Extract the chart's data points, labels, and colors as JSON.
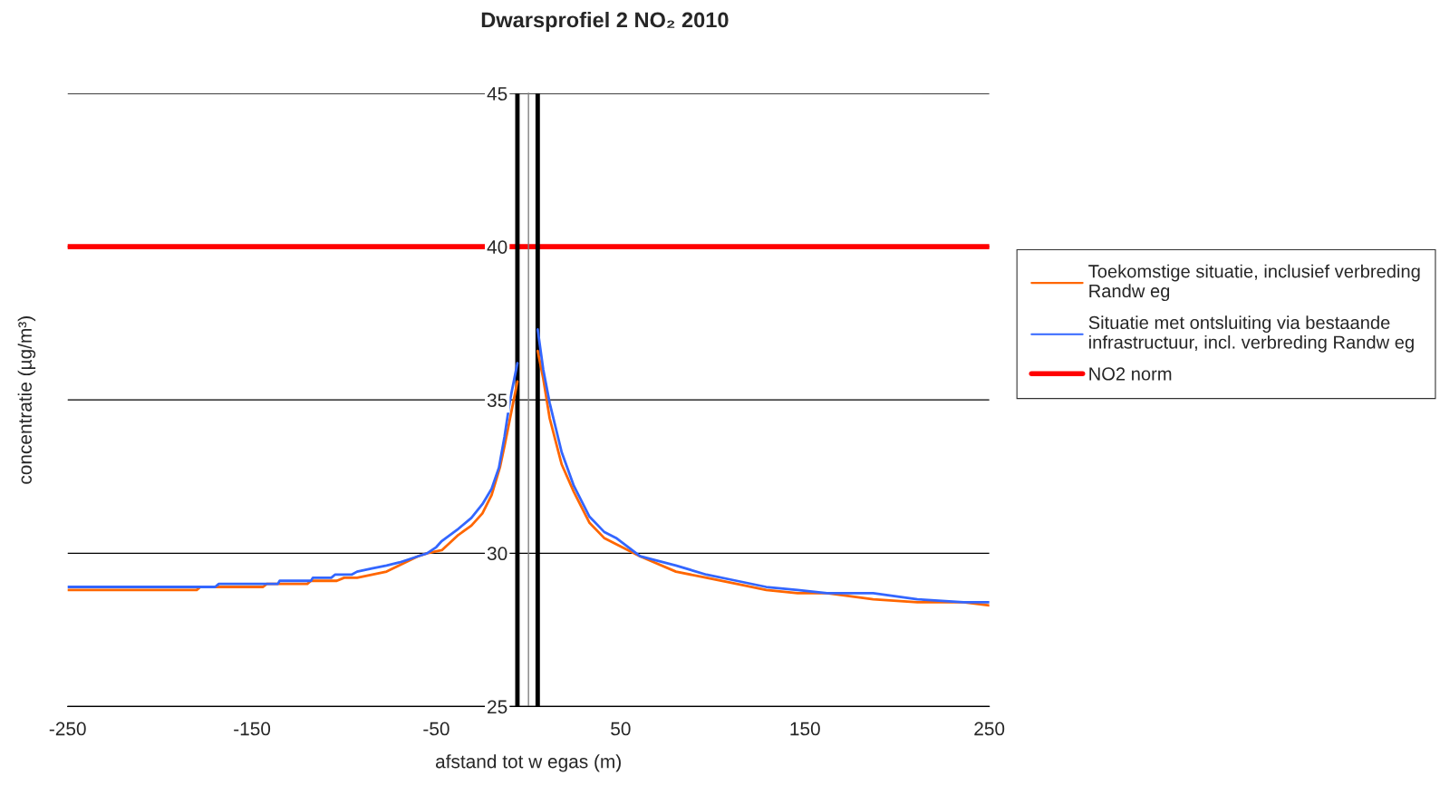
{
  "chart_data": {
    "type": "line",
    "title": "Dwarsprofiel 2 NO₂ 2010",
    "xlabel": "afstand tot w egas (m)",
    "ylabel": "concentratie (µg/m³)",
    "xlim": [
      -250,
      250
    ],
    "xticks": [
      -250,
      -150,
      -50,
      50,
      150,
      250
    ],
    "ylim": [
      25,
      45
    ],
    "yticks": [
      25,
      30,
      35,
      40,
      45
    ],
    "grid": "y",
    "legend": "right",
    "series": [
      {
        "name": "Toekomstige situatie, inclusief verbreding\nRandw eg",
        "color": "#ff6600",
        "x": [
          -250,
          -180,
          -178,
          -144,
          -142,
          -120,
          -118,
          -104,
          -100,
          -93,
          -77,
          -60,
          -55,
          -47,
          -38,
          -31,
          -25,
          -20,
          -15.5,
          -13,
          -10,
          -6,
          0,
          5,
          8,
          11.5,
          18,
          24.6,
          33,
          41,
          47.5,
          60.6,
          80,
          96.6,
          113,
          129,
          146,
          162,
          187,
          211,
          236,
          250
        ],
        "values": [
          28.8,
          28.8,
          28.9,
          28.9,
          29.0,
          29.0,
          29.1,
          29.1,
          29.2,
          29.2,
          29.4,
          29.9,
          30.0,
          30.1,
          30.6,
          30.9,
          31.3,
          31.9,
          32.8,
          33.5,
          34.4,
          35.6,
          null,
          36.6,
          35.7,
          34.4,
          32.9,
          32.0,
          31.0,
          30.5,
          30.3,
          29.9,
          29.4,
          29.2,
          29.0,
          28.8,
          28.7,
          28.7,
          28.5,
          28.4,
          28.4,
          28.3
        ]
      },
      {
        "name": "Situatie met ontsluiting via bestaande\ninfrastructuur, incl. verbreding Randw eg",
        "color": "#3366ff",
        "x": [
          -250,
          -170,
          -168,
          -136,
          -135,
          -118,
          -117,
          -107,
          -105,
          -96,
          -93,
          -85,
          -77,
          -70,
          -60,
          -55,
          -50,
          -47,
          -38,
          -31,
          -25,
          -20,
          -16,
          -13,
          -10,
          -6,
          0,
          5,
          8,
          11.5,
          18,
          24.6,
          33,
          41,
          47.5,
          60.6,
          80,
          96.6,
          113,
          129,
          146,
          162,
          187,
          211,
          236,
          250
        ],
        "values": [
          28.9,
          28.9,
          29.0,
          29.0,
          29.1,
          29.1,
          29.2,
          29.2,
          29.3,
          29.3,
          29.4,
          29.5,
          29.6,
          29.7,
          29.9,
          30.0,
          30.2,
          30.4,
          30.8,
          31.15,
          31.6,
          32.1,
          32.8,
          33.8,
          35.0,
          36.2,
          null,
          37.3,
          36.0,
          34.9,
          33.3,
          32.2,
          31.2,
          30.7,
          30.5,
          29.9,
          29.6,
          29.3,
          29.1,
          28.9,
          28.8,
          28.7,
          28.7,
          28.5,
          28.4,
          28.4
        ]
      }
    ],
    "ref_lines": [
      {
        "axis": "y",
        "value": 40,
        "label": "NO2 norm",
        "color": "#ff0000"
      },
      {
        "axis": "x",
        "value": -6,
        "color": "#000000"
      },
      {
        "axis": "x",
        "value": 5,
        "color": "#000000"
      }
    ]
  }
}
